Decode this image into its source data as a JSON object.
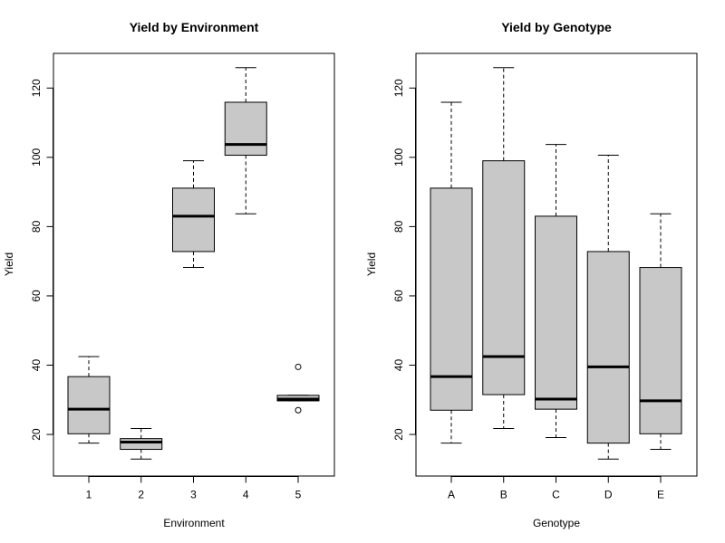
{
  "chart_data": [
    {
      "type": "boxplot",
      "title": "Yield by Environment",
      "xlabel": "Environment",
      "ylabel": "Yield",
      "ylim": [
        8,
        130
      ],
      "yticks": [
        20,
        40,
        60,
        80,
        100,
        120
      ],
      "grid": false,
      "legend": "none",
      "box_color": "#c8c8c8",
      "categories": [
        "1",
        "2",
        "3",
        "4",
        "5"
      ],
      "boxes": [
        {
          "category": "1",
          "whisker_low": 17.5,
          "q1": 20.2,
          "median": 27.3,
          "q3": 36.7,
          "whisker_high": 42.5,
          "outliers": []
        },
        {
          "category": "2",
          "whisker_low": 12.9,
          "q1": 15.7,
          "median": 17.8,
          "q3": 18.8,
          "whisker_high": 21.7,
          "outliers": []
        },
        {
          "category": "3",
          "whisker_low": 68.2,
          "q1": 72.8,
          "median": 83.0,
          "q3": 91.1,
          "whisker_high": 99.0,
          "outliers": []
        },
        {
          "category": "4",
          "whisker_low": 83.7,
          "q1": 100.6,
          "median": 103.7,
          "q3": 115.9,
          "whisker_high": 125.9,
          "outliers": []
        },
        {
          "category": "5",
          "whisker_low": 29.7,
          "q1": 29.7,
          "median": 30.2,
          "q3": 31.3,
          "whisker_high": 31.3,
          "outliers": [
            27.0,
            39.5
          ]
        }
      ]
    },
    {
      "type": "boxplot",
      "title": "Yield by Genotype",
      "xlabel": "Genotype",
      "ylabel": "Yield",
      "ylim": [
        8,
        130
      ],
      "yticks": [
        20,
        40,
        60,
        80,
        100,
        120
      ],
      "grid": false,
      "legend": "none",
      "box_color": "#c8c8c8",
      "categories": [
        "A",
        "B",
        "C",
        "D",
        "E"
      ],
      "boxes": [
        {
          "category": "A",
          "whisker_low": 17.5,
          "q1": 27.0,
          "median": 36.7,
          "q3": 91.1,
          "whisker_high": 115.9,
          "outliers": []
        },
        {
          "category": "B",
          "whisker_low": 21.7,
          "q1": 31.5,
          "median": 42.5,
          "q3": 99.0,
          "whisker_high": 125.9,
          "outliers": []
        },
        {
          "category": "C",
          "whisker_low": 19.1,
          "q1": 27.3,
          "median": 30.2,
          "q3": 83.0,
          "whisker_high": 103.7,
          "outliers": []
        },
        {
          "category": "D",
          "whisker_low": 12.9,
          "q1": 17.5,
          "median": 39.5,
          "q3": 72.8,
          "whisker_high": 100.6,
          "outliers": []
        },
        {
          "category": "E",
          "whisker_low": 15.7,
          "q1": 20.2,
          "median": 29.7,
          "q3": 68.2,
          "whisker_high": 83.7,
          "outliers": []
        }
      ]
    }
  ]
}
